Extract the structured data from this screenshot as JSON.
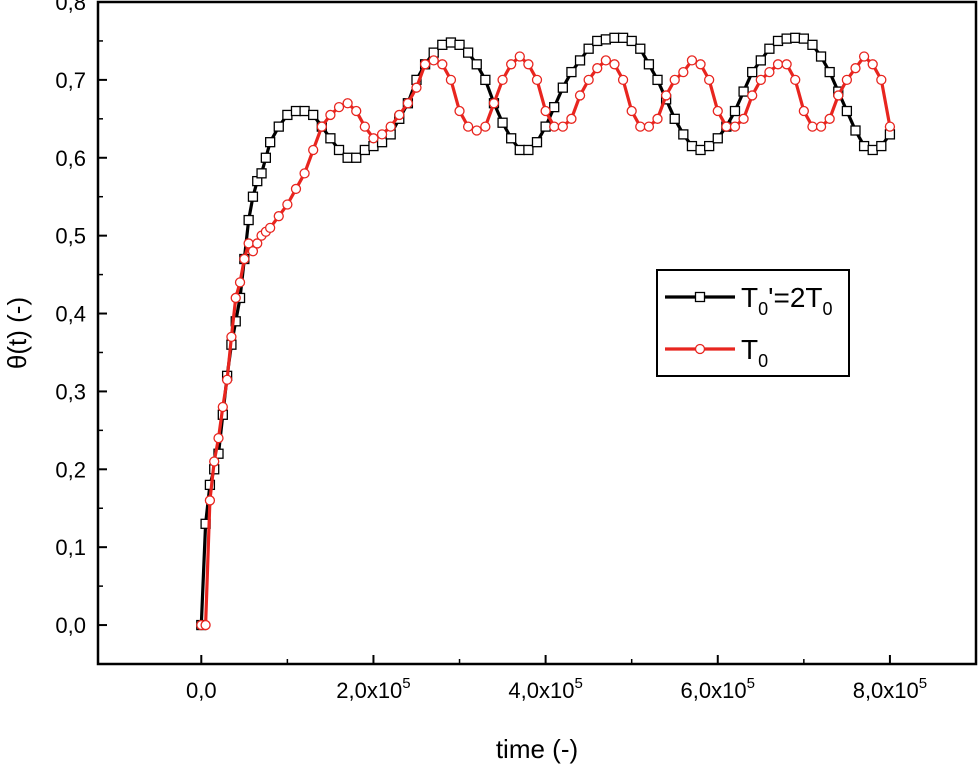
{
  "chart_data": {
    "type": "line",
    "title": "",
    "xlabel": "time (-)",
    "ylabel": "θ(t) (-)",
    "xlim": [
      -120000,
      900000
    ],
    "ylim": [
      -0.05,
      0.8
    ],
    "x_ticks": [
      {
        "value": 0,
        "mantissa": "0,0",
        "exponent": ""
      },
      {
        "value": 200000,
        "mantissa": "2,0x10",
        "exponent": "5"
      },
      {
        "value": 400000,
        "mantissa": "4,0x10",
        "exponent": "5"
      },
      {
        "value": 600000,
        "mantissa": "6,0x10",
        "exponent": "5"
      },
      {
        "value": 800000,
        "mantissa": "8,0x10",
        "exponent": "5"
      }
    ],
    "y_ticks": [
      {
        "value": 0.0,
        "label": "0,0"
      },
      {
        "value": 0.1,
        "label": "0,1"
      },
      {
        "value": 0.2,
        "label": "0,2"
      },
      {
        "value": 0.3,
        "label": "0,3"
      },
      {
        "value": 0.4,
        "label": "0,4"
      },
      {
        "value": 0.5,
        "label": "0,5"
      },
      {
        "value": 0.6,
        "label": "0,6"
      },
      {
        "value": 0.7,
        "label": "0,7"
      },
      {
        "value": 0.8,
        "label": "0,8"
      }
    ],
    "legend": {
      "placement": "right-middle",
      "entries": [
        {
          "series": "T0prime",
          "parts": [
            [
              "T",
              "base"
            ],
            [
              "0",
              "sub"
            ],
            [
              "'=2T",
              "base"
            ],
            [
              "0",
              "sub"
            ]
          ]
        },
        {
          "series": "T0",
          "parts": [
            [
              "T",
              "base"
            ],
            [
              "0",
              "sub"
            ]
          ]
        }
      ]
    },
    "series": [
      {
        "name": "T0'=2T0",
        "id": "T0prime",
        "color": "#000000",
        "marker": "square",
        "marker_fill": "#ffffff",
        "x": [
          0,
          5000,
          10000,
          15000,
          20000,
          25000,
          30000,
          35000,
          40000,
          45000,
          50000,
          55000,
          60000,
          65000,
          70000,
          75000,
          80000,
          90000,
          100000,
          110000,
          120000,
          130000,
          140000,
          150000,
          160000,
          170000,
          180000,
          190000,
          200000,
          210000,
          220000,
          230000,
          240000,
          250000,
          260000,
          270000,
          280000,
          290000,
          300000,
          310000,
          320000,
          330000,
          340000,
          350000,
          360000,
          370000,
          380000,
          390000,
          400000,
          410000,
          420000,
          430000,
          440000,
          450000,
          460000,
          470000,
          480000,
          490000,
          500000,
          510000,
          520000,
          530000,
          540000,
          550000,
          560000,
          570000,
          580000,
          590000,
          600000,
          610000,
          620000,
          630000,
          640000,
          650000,
          660000,
          670000,
          680000,
          690000,
          700000,
          710000,
          720000,
          730000,
          740000,
          750000,
          760000,
          770000,
          780000,
          790000,
          800000
        ],
        "y": [
          0.0,
          0.13,
          0.18,
          0.2,
          0.22,
          0.27,
          0.32,
          0.36,
          0.39,
          0.42,
          0.47,
          0.52,
          0.55,
          0.57,
          0.58,
          0.6,
          0.62,
          0.64,
          0.655,
          0.66,
          0.66,
          0.655,
          0.64,
          0.625,
          0.61,
          0.6,
          0.6,
          0.61,
          0.615,
          0.62,
          0.63,
          0.65,
          0.67,
          0.7,
          0.72,
          0.735,
          0.745,
          0.748,
          0.745,
          0.735,
          0.72,
          0.7,
          0.67,
          0.645,
          0.625,
          0.61,
          0.61,
          0.62,
          0.64,
          0.665,
          0.69,
          0.71,
          0.725,
          0.74,
          0.75,
          0.752,
          0.754,
          0.754,
          0.75,
          0.74,
          0.72,
          0.7,
          0.675,
          0.65,
          0.63,
          0.615,
          0.61,
          0.615,
          0.625,
          0.64,
          0.66,
          0.685,
          0.71,
          0.725,
          0.74,
          0.75,
          0.753,
          0.754,
          0.753,
          0.745,
          0.73,
          0.71,
          0.685,
          0.66,
          0.635,
          0.615,
          0.61,
          0.615,
          0.63
        ]
      },
      {
        "name": "T0",
        "id": "T0",
        "color": "#e8251f",
        "marker": "circle",
        "marker_fill": "#ffffff",
        "x": [
          0,
          5000,
          10000,
          15000,
          20000,
          25000,
          30000,
          35000,
          40000,
          45000,
          50000,
          55000,
          60000,
          65000,
          70000,
          75000,
          80000,
          90000,
          100000,
          110000,
          120000,
          130000,
          140000,
          150000,
          160000,
          170000,
          180000,
          190000,
          200000,
          210000,
          220000,
          230000,
          240000,
          250000,
          260000,
          270000,
          280000,
          290000,
          300000,
          310000,
          320000,
          330000,
          340000,
          350000,
          360000,
          370000,
          380000,
          390000,
          400000,
          410000,
          420000,
          430000,
          440000,
          450000,
          460000,
          470000,
          480000,
          490000,
          500000,
          510000,
          520000,
          530000,
          540000,
          550000,
          560000,
          570000,
          580000,
          590000,
          600000,
          610000,
          620000,
          630000,
          640000,
          650000,
          660000,
          670000,
          680000,
          690000,
          700000,
          710000,
          720000,
          730000,
          740000,
          750000,
          760000,
          770000,
          780000,
          790000,
          800000
        ],
        "y": [
          0.0,
          0.0,
          0.16,
          0.21,
          0.24,
          0.28,
          0.315,
          0.37,
          0.42,
          0.44,
          0.47,
          0.49,
          0.48,
          0.49,
          0.5,
          0.505,
          0.51,
          0.525,
          0.54,
          0.56,
          0.58,
          0.61,
          0.64,
          0.655,
          0.665,
          0.67,
          0.66,
          0.64,
          0.625,
          0.63,
          0.64,
          0.655,
          0.67,
          0.69,
          0.72,
          0.725,
          0.72,
          0.7,
          0.66,
          0.64,
          0.635,
          0.64,
          0.67,
          0.7,
          0.72,
          0.73,
          0.72,
          0.7,
          0.66,
          0.64,
          0.64,
          0.65,
          0.68,
          0.7,
          0.715,
          0.725,
          0.72,
          0.7,
          0.66,
          0.64,
          0.64,
          0.65,
          0.68,
          0.7,
          0.71,
          0.725,
          0.72,
          0.7,
          0.66,
          0.64,
          0.64,
          0.65,
          0.68,
          0.7,
          0.71,
          0.72,
          0.72,
          0.7,
          0.66,
          0.64,
          0.64,
          0.65,
          0.68,
          0.7,
          0.715,
          0.73,
          0.72,
          0.7,
          0.64
        ]
      }
    ]
  }
}
